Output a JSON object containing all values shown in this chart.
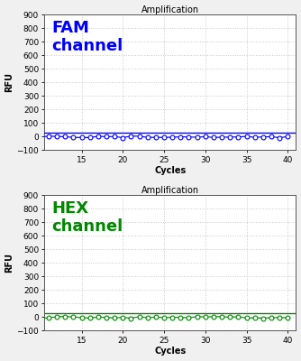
{
  "title": "Amplification",
  "xlabel": "Cycles",
  "ylabel": "RFU",
  "xlim": [
    10.5,
    41
  ],
  "ylim": [
    -100,
    900
  ],
  "yticks": [
    -100,
    0,
    100,
    200,
    300,
    400,
    500,
    600,
    700,
    800,
    900
  ],
  "xticks": [
    15,
    20,
    25,
    30,
    35,
    40
  ],
  "fam_color": "#0000FF",
  "hex_color": "#008800",
  "fam_label": "FAM\nchannel",
  "hex_label": "HEX\nchannel",
  "threshold_y": 28,
  "cycles_start": 10,
  "cycles_end": 40,
  "background_color": "#ffffff",
  "grid_color": "#c8c8c8",
  "title_fontsize": 7,
  "label_fontsize": 7,
  "tick_fontsize": 6.5,
  "channel_label_fontsize": 13
}
